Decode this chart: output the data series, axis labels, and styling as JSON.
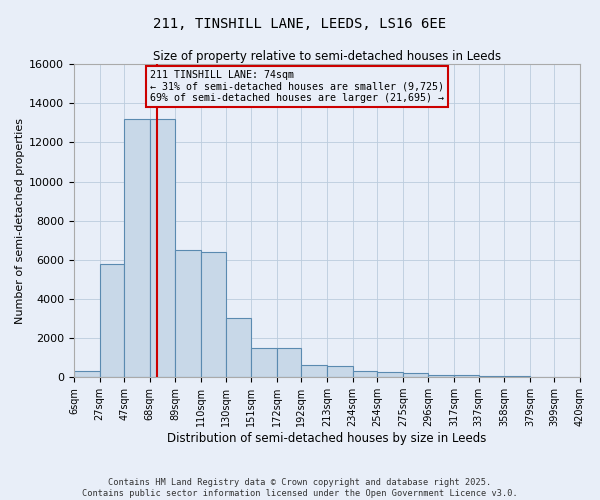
{
  "title": "211, TINSHILL LANE, LEEDS, LS16 6EE",
  "subtitle": "Size of property relative to semi-detached houses in Leeds",
  "xlabel": "Distribution of semi-detached houses by size in Leeds",
  "ylabel": "Number of semi-detached properties",
  "bin_edges": [
    6,
    27,
    47,
    68,
    89,
    110,
    130,
    151,
    172,
    192,
    213,
    234,
    254,
    275,
    296,
    317,
    337,
    358,
    379,
    399,
    420
  ],
  "bin_labels": [
    "6sqm",
    "27sqm",
    "47sqm",
    "68sqm",
    "89sqm",
    "110sqm",
    "130sqm",
    "151sqm",
    "172sqm",
    "192sqm",
    "213sqm",
    "234sqm",
    "254sqm",
    "275sqm",
    "296sqm",
    "317sqm",
    "337sqm",
    "358sqm",
    "379sqm",
    "399sqm",
    "420sqm"
  ],
  "bar_heights": [
    300,
    5800,
    13200,
    13200,
    6500,
    6400,
    3050,
    1500,
    1480,
    600,
    580,
    300,
    250,
    200,
    100,
    90,
    50,
    40,
    10,
    5
  ],
  "bar_color": "#c8d8e8",
  "bar_edge_color": "#5a8ab0",
  "property_size": 74,
  "property_label": "211 TINSHILL LANE: 74sqm",
  "pct_smaller": 31,
  "pct_larger": 69,
  "num_smaller": 9725,
  "num_larger": 21695,
  "red_line_color": "#cc0000",
  "annotation_box_edge": "#cc0000",
  "ylim": [
    0,
    16000
  ],
  "yticks": [
    0,
    2000,
    4000,
    6000,
    8000,
    10000,
    12000,
    14000,
    16000
  ],
  "grid_color": "#bbccdd",
  "bg_color": "#e8eef8",
  "footer1": "Contains HM Land Registry data © Crown copyright and database right 2025.",
  "footer2": "Contains public sector information licensed under the Open Government Licence v3.0."
}
